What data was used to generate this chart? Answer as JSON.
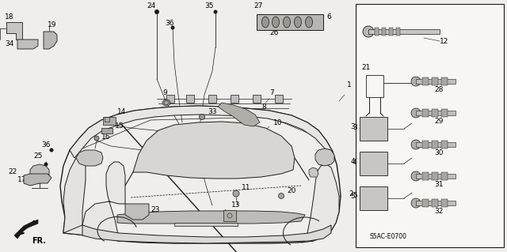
{
  "figsize": [
    6.4,
    3.19
  ],
  "dpi": 100,
  "background": "#f0eeea",
  "line_color": "#1a1a1a",
  "text_color": "#000000",
  "panel_bg": "#f5f3ef",
  "font_size": 6.5,
  "diagram_code": "S5AC-E0700"
}
